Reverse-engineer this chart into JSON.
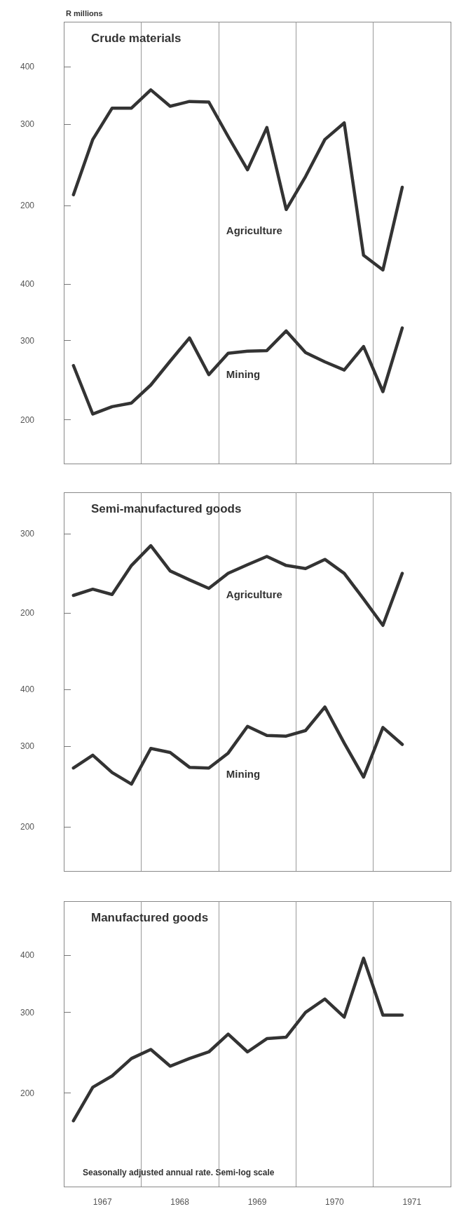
{
  "chart_data": [
    {
      "type": "line",
      "title": "Crude materials",
      "ylabel": "R millions",
      "log": "y",
      "marker": "none",
      "line_style": "solid",
      "tick_labels": "y",
      "x": [
        1967.125,
        1967.375,
        1967.625,
        1967.875,
        1968.125,
        1968.375,
        1968.625,
        1968.875,
        1969.125,
        1969.375,
        1969.625,
        1969.875,
        1970.125,
        1970.375,
        1970.625,
        1970.875,
        1971.125,
        1971.375
      ],
      "xlim": [
        1967,
        1972
      ],
      "ylim": [
        140,
        500
      ],
      "yticks": [
        200,
        300,
        400
      ],
      "ref_lines": [
        {
          "axis": "x",
          "value": 1968,
          "color": "#999999"
        },
        {
          "axis": "x",
          "value": 1969,
          "color": "#999999"
        },
        {
          "axis": "x",
          "value": 1970,
          "color": "#999999"
        },
        {
          "axis": "x",
          "value": 1971,
          "color": "#999999"
        }
      ],
      "series": [
        {
          "name": "Agriculture",
          "color": "#333333",
          "values": [
            211,
            278,
            325,
            325,
            356,
            328,
            336,
            335,
            282,
            239,
            295,
            196,
            231,
            278,
            302,
            156,
            145,
            219
          ]
        }
      ]
    },
    {
      "type": "line",
      "log": "y",
      "marker": "none",
      "line_style": "solid",
      "tick_labels": "y",
      "x": [
        1967.125,
        1967.375,
        1967.625,
        1967.875,
        1968.125,
        1968.375,
        1968.625,
        1968.875,
        1969.125,
        1969.375,
        1969.625,
        1969.875,
        1970.125,
        1970.375,
        1970.625,
        1970.875,
        1971.125,
        1971.375
      ],
      "xlim": [
        1967,
        1972
      ],
      "ylim": [
        160,
        415
      ],
      "yticks": [
        200,
        300,
        400
      ],
      "ref_lines": [
        {
          "axis": "x",
          "value": 1968,
          "color": "#999999"
        },
        {
          "axis": "x",
          "value": 1969,
          "color": "#999999"
        },
        {
          "axis": "x",
          "value": 1970,
          "color": "#999999"
        },
        {
          "axis": "x",
          "value": 1971,
          "color": "#999999"
        }
      ],
      "series": [
        {
          "name": "Mining",
          "color": "#333333",
          "values": [
            264,
            206,
            214,
            218,
            239,
            270,
            304,
            252,
            281,
            284,
            285,
            315,
            282,
            269,
            258,
            291,
            231,
            320
          ]
        }
      ]
    },
    {
      "type": "line",
      "title": "Semi-manufactured goods",
      "log": "y",
      "marker": "none",
      "line_style": "solid",
      "tick_labels": "y",
      "x": [
        1967.125,
        1967.375,
        1967.625,
        1967.875,
        1968.125,
        1968.375,
        1968.625,
        1968.875,
        1969.125,
        1969.375,
        1969.625,
        1969.875,
        1970.125,
        1970.375,
        1970.625,
        1970.875,
        1971.125,
        1971.375
      ],
      "xlim": [
        1967,
        1972
      ],
      "ylim": [
        170,
        370
      ],
      "yticks": [
        200,
        300
      ],
      "ref_lines": [
        {
          "axis": "x",
          "value": 1968,
          "color": "#999999"
        },
        {
          "axis": "x",
          "value": 1969,
          "color": "#999999"
        },
        {
          "axis": "x",
          "value": 1970,
          "color": "#999999"
        },
        {
          "axis": "x",
          "value": 1971,
          "color": "#999999"
        }
      ],
      "series": [
        {
          "name": "Agriculture",
          "color": "#333333",
          "values": [
            219,
            226,
            220,
            255,
            282,
            248,
            237,
            227,
            245,
            256,
            267,
            255,
            251,
            263,
            245,
            215,
            188,
            245
          ]
        }
      ]
    },
    {
      "type": "line",
      "log": "y",
      "marker": "none",
      "line_style": "solid",
      "tick_labels": "y",
      "x": [
        1967.125,
        1967.375,
        1967.625,
        1967.875,
        1968.125,
        1968.375,
        1968.625,
        1968.875,
        1969.125,
        1969.375,
        1969.625,
        1969.875,
        1970.125,
        1970.375,
        1970.625,
        1970.875,
        1971.125,
        1971.375
      ],
      "xlim": [
        1967,
        1972
      ],
      "ylim": [
        160,
        500
      ],
      "yticks": [
        200,
        300,
        400
      ],
      "ref_lines": [
        {
          "axis": "x",
          "value": 1968,
          "color": "#999999"
        },
        {
          "axis": "x",
          "value": 1969,
          "color": "#999999"
        },
        {
          "axis": "x",
          "value": 1970,
          "color": "#999999"
        },
        {
          "axis": "x",
          "value": 1971,
          "color": "#999999"
        }
      ],
      "series": [
        {
          "name": "Mining",
          "color": "#333333",
          "values": [
            269,
            287,
            263,
            248,
            297,
            291,
            270,
            269,
            290,
            332,
            317,
            316,
            325,
            366,
            305,
            257,
            330,
            303
          ]
        }
      ]
    },
    {
      "type": "line",
      "title": "Manufactured goods",
      "log": "y",
      "marker": "none",
      "line_style": "solid",
      "annotations": [
        "Seasonally adjusted annual rate. Semi-log scale"
      ],
      "x": [
        1967.125,
        1967.375,
        1967.625,
        1967.875,
        1968.125,
        1968.375,
        1968.625,
        1968.875,
        1969.125,
        1969.375,
        1969.625,
        1969.875,
        1970.125,
        1970.375,
        1970.625,
        1970.875,
        1971.125,
        1971.375
      ],
      "xlim": [
        1967,
        1972
      ],
      "xticks": [
        {
          "value": 1967.5,
          "label": "1967"
        },
        {
          "value": 1968.5,
          "label": "1968"
        },
        {
          "value": 1969.5,
          "label": "1969"
        },
        {
          "value": 1970.5,
          "label": "1970"
        },
        {
          "value": 1971.5,
          "label": "1971"
        }
      ],
      "ylim": [
        125,
        525
      ],
      "yticks": [
        200,
        300,
        400
      ],
      "ref_lines": [
        {
          "axis": "x",
          "value": 1968,
          "color": "#999999"
        },
        {
          "axis": "x",
          "value": 1969,
          "color": "#999999"
        },
        {
          "axis": "x",
          "value": 1970,
          "color": "#999999"
        },
        {
          "axis": "x",
          "value": 1971,
          "color": "#999999"
        }
      ],
      "series": [
        {
          "color": "#333333",
          "values": [
            174,
            206,
            218,
            238,
            249,
            229,
            238,
            246,
            269,
            246,
            263,
            265,
            300,
            321,
            293,
            394,
            296,
            296
          ]
        }
      ]
    }
  ]
}
